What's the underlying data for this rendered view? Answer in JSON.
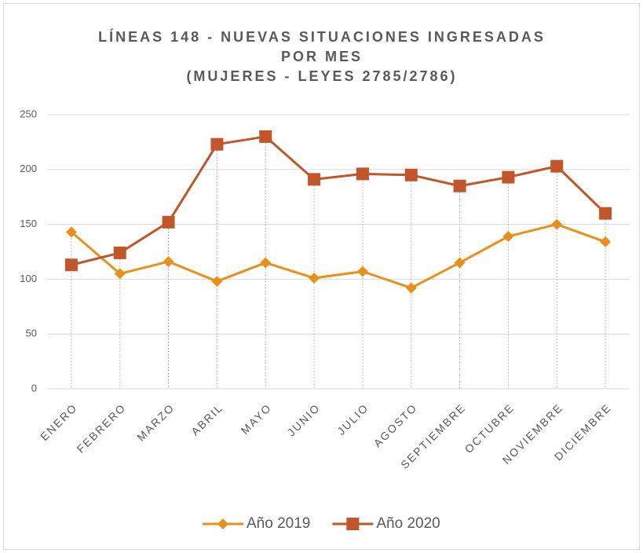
{
  "chart_data": {
    "type": "line",
    "title": [
      "LÍNEAS 148 - NUEVAS SITUACIONES INGRESADAS",
      "POR MES",
      "(MUJERES - LEYES 2785/2786)"
    ],
    "categories": [
      "ENERO",
      "FEBRERO",
      "MARZO",
      "ABRIL",
      "MAYO",
      "JUNIO",
      "JULIO",
      "AGOSTO",
      "SEPTIEMBRE",
      "OCTUBRE",
      "NOVIEMBRE",
      "DICIEMBRE"
    ],
    "series": [
      {
        "name": "Año 2019",
        "color": "#e8901c",
        "marker": "diamond",
        "values": [
          143,
          105,
          116,
          98,
          115,
          101,
          107,
          92,
          115,
          139,
          150,
          134
        ]
      },
      {
        "name": "Año 2020",
        "color": "#c0562a",
        "marker": "square",
        "values": [
          113,
          124,
          152,
          223,
          230,
          191,
          196,
          195,
          185,
          193,
          203,
          160
        ]
      }
    ],
    "ylim": [
      0,
      250
    ],
    "yticks": [
      0,
      50,
      100,
      150,
      200,
      250
    ],
    "grid": true,
    "drop_lines": true,
    "legend": "bottom"
  }
}
